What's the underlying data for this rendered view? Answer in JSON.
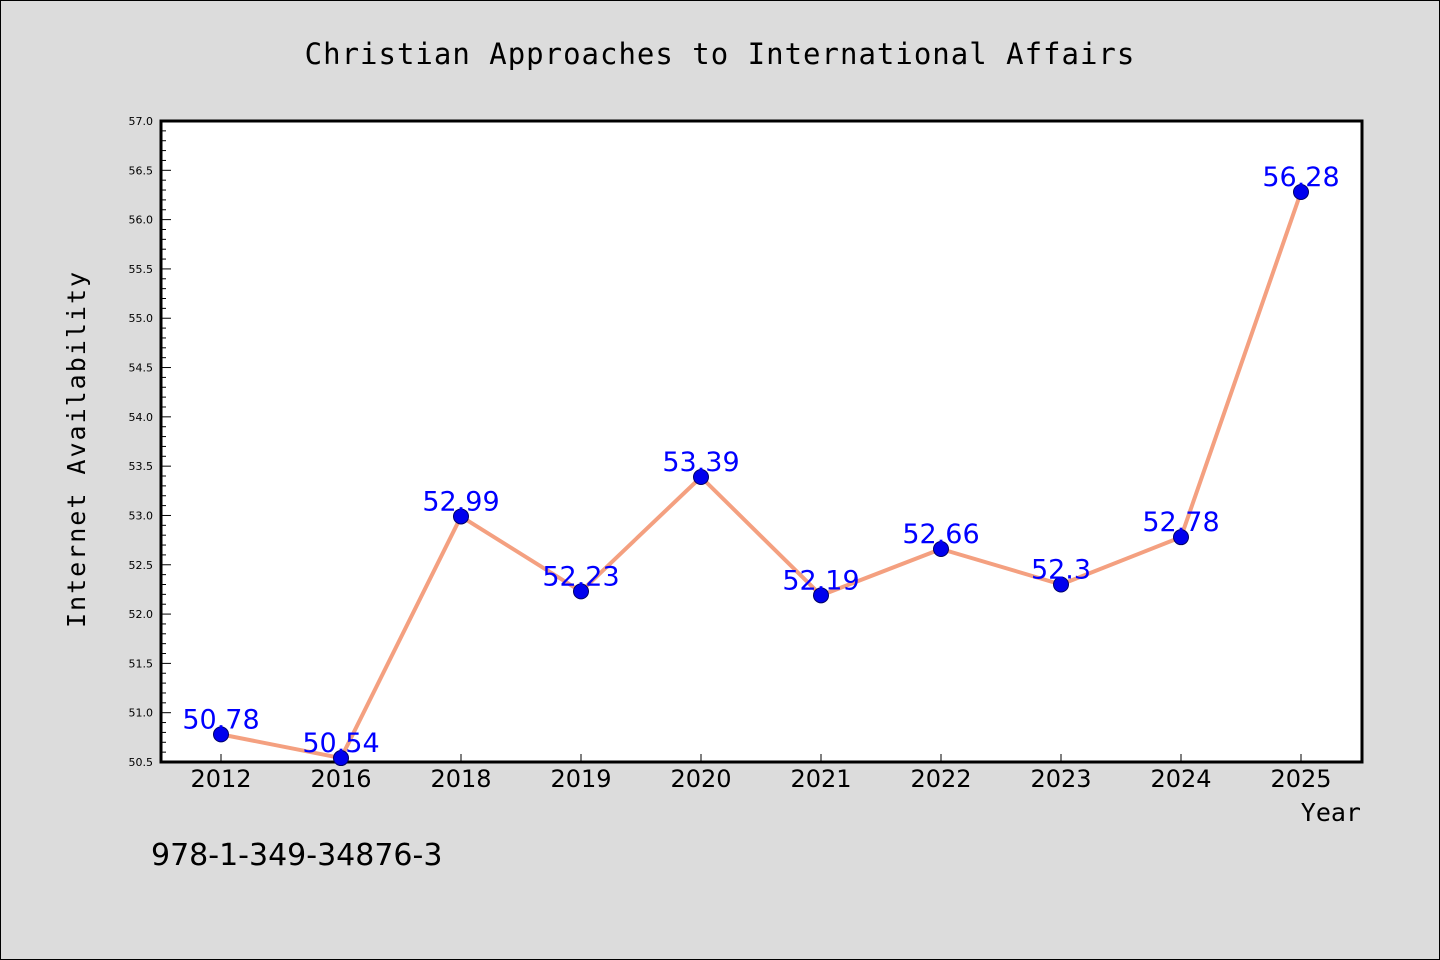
{
  "chart_data": {
    "type": "line",
    "title": "Christian Approaches to International Affairs",
    "xlabel": "Year",
    "ylabel": "Internet Availability",
    "categories": [
      "2012",
      "2016",
      "2018",
      "2019",
      "2020",
      "2021",
      "2022",
      "2023",
      "2024",
      "2025"
    ],
    "series": [
      {
        "values": [
          50.78,
          50.54,
          52.99,
          52.23,
          53.39,
          52.19,
          52.66,
          52.3,
          52.78,
          56.28
        ],
        "data_labels": [
          "50.78",
          "50.54",
          "52.99",
          "52.23",
          "53.39",
          "52.19",
          "52.66",
          "52.3",
          "52.78",
          "56.28"
        ]
      }
    ],
    "ylim": [
      50.5,
      57.0
    ],
    "y_ticks": [
      "50.5",
      "51.0",
      "51.5",
      "52.0",
      "52.5",
      "53.0",
      "53.5",
      "54.0",
      "54.5",
      "55.0",
      "55.5",
      "56.0",
      "56.5",
      "57.0"
    ],
    "y_minor_step": 0.1,
    "grid": false,
    "legend": "none",
    "colors": {
      "line": "#f4a080",
      "marker": "#0000ee",
      "marker_edge": "#000066",
      "data_label": "#0000ff",
      "background": "#dcdcdc",
      "plot_area": "#ffffff"
    }
  },
  "footer": {
    "isbn": "978-1-349-34876-3"
  }
}
